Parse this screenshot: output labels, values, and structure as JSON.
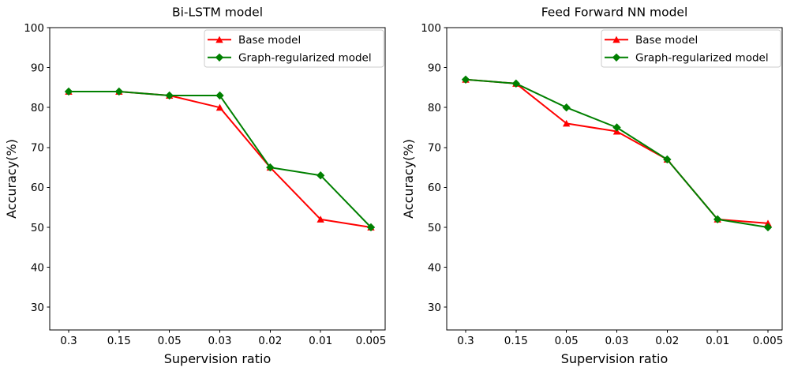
{
  "figure": {
    "background": "#ffffff",
    "axis_color": "#000000",
    "legend_border_color": "#cccccc",
    "legend_fill": "#ffffff"
  },
  "chart_data": [
    {
      "type": "line",
      "title": "Bi-LSTM model",
      "xlabel": "Supervision ratio",
      "ylabel": "Accuracy(%)",
      "categories": [
        "0.3",
        "0.15",
        "0.05",
        "0.03",
        "0.02",
        "0.01",
        "0.005"
      ],
      "yticks": [
        30,
        40,
        50,
        60,
        70,
        80,
        90,
        100
      ],
      "ylim": [
        24.3,
        100
      ],
      "grid": false,
      "legend_position": "upper right",
      "legend_entries": [
        "Base model",
        "Graph-regularized model"
      ],
      "series": [
        {
          "name": "Base model",
          "color": "#ff0000",
          "marker": "triangle-up",
          "values": [
            84,
            84,
            83,
            80,
            65,
            52,
            50
          ]
        },
        {
          "name": "Graph-regularized model",
          "color": "#008000",
          "marker": "diamond",
          "values": [
            84,
            84,
            83,
            83,
            65,
            63,
            50
          ]
        }
      ]
    },
    {
      "type": "line",
      "title": "Feed Forward NN model",
      "xlabel": "Supervision ratio",
      "ylabel": "Accuracy(%)",
      "categories": [
        "0.3",
        "0.15",
        "0.05",
        "0.03",
        "0.02",
        "0.01",
        "0.005"
      ],
      "yticks": [
        30,
        40,
        50,
        60,
        70,
        80,
        90,
        100
      ],
      "ylim": [
        24.3,
        100
      ],
      "grid": false,
      "legend_position": "upper right",
      "legend_entries": [
        "Base model",
        "Graph-regularized model"
      ],
      "series": [
        {
          "name": "Base model",
          "color": "#ff0000",
          "marker": "triangle-up",
          "values": [
            87,
            86,
            76,
            74,
            67,
            52,
            51
          ]
        },
        {
          "name": "Graph-regularized model",
          "color": "#008000",
          "marker": "diamond",
          "values": [
            87,
            86,
            80,
            75,
            67,
            52,
            50
          ]
        }
      ]
    }
  ]
}
